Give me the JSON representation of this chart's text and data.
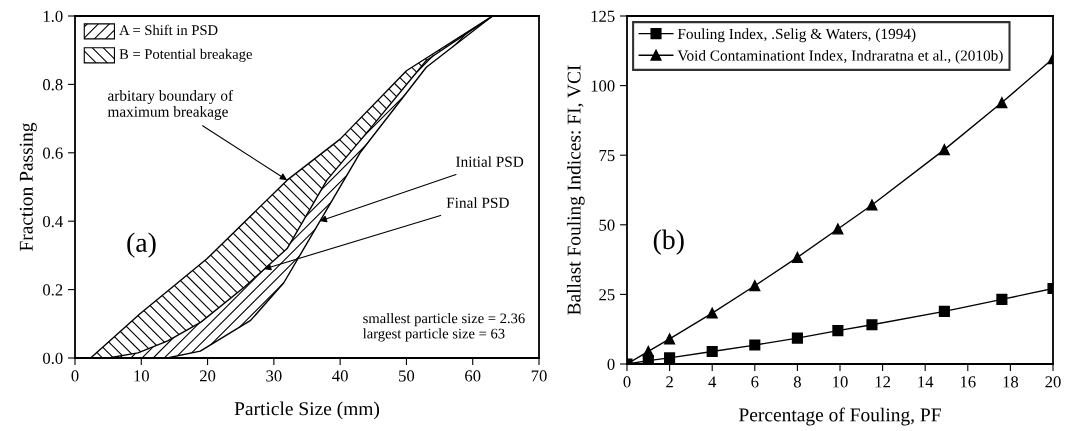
{
  "chart_data": [
    {
      "type": "line",
      "xlabel": "Particle Size (mm)",
      "ylabel": "Fraction Passing",
      "xlim": [
        0,
        70
      ],
      "ylim": [
        0,
        1.0
      ],
      "xticks": [
        0,
        10,
        20,
        30,
        40,
        50,
        60,
        70
      ],
      "yticks": [
        {
          "value": 0,
          "label": "0.0"
        },
        {
          "value": 0.2,
          "label": "0.2"
        },
        {
          "value": 0.4,
          "label": "0.4"
        },
        {
          "value": 0.6,
          "label": "0.6"
        },
        {
          "value": 0.8,
          "label": "0.8"
        },
        {
          "value": 1.0,
          "label": "1.0"
        }
      ],
      "grid": false,
      "marker": "none",
      "series": [
        {
          "color": "#000000",
          "x": [
            2.36,
            9.85,
            19.9,
            32,
            40,
            50,
            63
          ],
          "values": [
            0,
            0.13,
            0.29,
            0.52,
            0.64,
            0.84,
            1.0
          ]
        },
        {
          "color": "#000000",
          "x": [
            5,
            9.5,
            14,
            19,
            25.7,
            32,
            38,
            44.5,
            53,
            63
          ],
          "values": [
            0,
            0.015,
            0.05,
            0.105,
            0.21,
            0.32,
            0.52,
            0.67,
            0.87,
            1.0
          ]
        },
        {
          "color": "#000000",
          "x": [
            13.9,
            18.9,
            26.5,
            31.5,
            43,
            53,
            63
          ],
          "values": [
            0,
            0.02,
            0.11,
            0.22,
            0.6,
            0.85,
            1.0
          ]
        }
      ],
      "annotations": [
        "A = Shift in PSD",
        "B = Potential breakage",
        {
          "text": "arbitary boundary of\nmaximum breakage",
          "x": 32,
          "y": 0.52
        },
        {
          "text": "Initial PSD",
          "x": 36.9,
          "y": 0.4
        },
        {
          "text": "Final PSD",
          "x": 28.5,
          "y": 0.26
        },
        "(a)",
        "smallest particle size = 2.36\nlargest particle size = 63"
      ]
    },
    {
      "type": "line",
      "xlabel": "Percentage of Fouling, PF",
      "ylabel": "Ballast Fouling Indices: FI, VCI",
      "xlim": [
        0,
        20
      ],
      "ylim": [
        0,
        125
      ],
      "xticks": [
        0,
        2,
        4,
        6,
        8,
        10,
        12,
        14,
        16,
        18,
        20
      ],
      "yticks": [
        0,
        25,
        50,
        75,
        100,
        125
      ],
      "grid": false,
      "legend": "top left",
      "x": [
        0,
        1,
        2,
        4,
        6,
        8,
        9.9,
        11.5,
        14.9,
        17.6,
        20
      ],
      "series": [
        {
          "name": "Fouling Index, .Selig & Waters, (1994)",
          "color": "#000000",
          "marker": "square",
          "values": [
            0,
            1.2,
            2.2,
            4.5,
            6.8,
            9.3,
            12,
            14.1,
            18.9,
            23.2,
            27.1
          ]
        },
        {
          "name": "Void Contaminationt Index, Indraratna et al., (2010b)",
          "color": "#000000",
          "marker": "triangle",
          "values": [
            0,
            4.5,
            9.0,
            18.3,
            28.1,
            38.3,
            48.5,
            57.1,
            77,
            93.9,
            109.7
          ]
        }
      ],
      "annotations": [
        "(b)"
      ]
    }
  ]
}
